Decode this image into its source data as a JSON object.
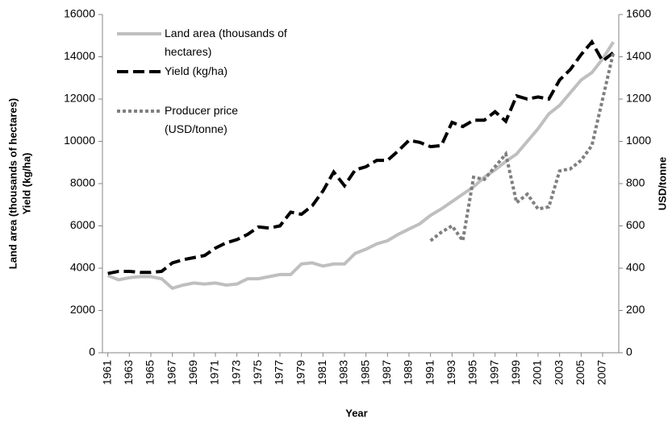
{
  "chart_data": {
    "type": "line",
    "xlabel": "Year",
    "ylabel": [
      "Land area  (thousands of hectares)",
      "Yield (kg/ha)"
    ],
    "y2label": "USD/tonne",
    "x": [
      1961,
      1962,
      1963,
      1964,
      1965,
      1966,
      1967,
      1968,
      1969,
      1970,
      1971,
      1972,
      1973,
      1974,
      1975,
      1976,
      1977,
      1978,
      1979,
      1980,
      1981,
      1982,
      1983,
      1984,
      1985,
      1986,
      1987,
      1988,
      1989,
      1990,
      1991,
      1992,
      1993,
      1994,
      1995,
      1996,
      1997,
      1998,
      1999,
      2000,
      2001,
      2002,
      2003,
      2004,
      2005,
      2006,
      2007,
      2008
    ],
    "xlim": [
      1960.5,
      2008.5
    ],
    "xticks": [
      1961,
      1963,
      1965,
      1967,
      1969,
      1971,
      1973,
      1975,
      1977,
      1979,
      1981,
      1983,
      1985,
      1987,
      1989,
      1991,
      1993,
      1995,
      1997,
      1999,
      2001,
      2003,
      2005,
      2007
    ],
    "ylim": [
      0,
      16000
    ],
    "yticks": [
      0,
      2000,
      4000,
      6000,
      8000,
      10000,
      12000,
      14000,
      16000
    ],
    "y2lim": [
      0,
      1600
    ],
    "y2ticks": [
      0,
      200,
      400,
      600,
      800,
      1000,
      1200,
      1400,
      1600
    ],
    "series": [
      {
        "name": "Land area (thousands of hectares)",
        "color": "#bfbfbf",
        "dash": "solid",
        "values": [
          3650,
          3450,
          3550,
          3600,
          3600,
          3500,
          3050,
          3200,
          3300,
          3250,
          3300,
          3200,
          3250,
          3500,
          3500,
          3600,
          3700,
          3700,
          4200,
          4250,
          4100,
          4200,
          4200,
          4700,
          4900,
          5150,
          5300,
          5600,
          5850,
          6100,
          6500,
          6800,
          7150,
          7500,
          7850,
          8300,
          8650,
          9050,
          9400,
          10000,
          10600,
          11300,
          11700,
          12300,
          12900,
          13250,
          13900,
          14700
        ]
      },
      {
        "name": "Yield (kg/ha)",
        "color": "#000000",
        "dash": "dashed",
        "values": [
          3750,
          3850,
          3850,
          3800,
          3800,
          3850,
          4250,
          4400,
          4500,
          4600,
          4950,
          5200,
          5350,
          5600,
          5950,
          5900,
          6000,
          6650,
          6550,
          6950,
          7650,
          8550,
          7900,
          8650,
          8800,
          9100,
          9100,
          9550,
          10050,
          9950,
          9750,
          9800,
          10900,
          10700,
          11000,
          11000,
          11400,
          10950,
          12150,
          12000,
          12100,
          12000,
          12900,
          13400,
          14100,
          14700,
          13800,
          14200
        ]
      },
      {
        "name": "Producer price (USD/tonne)",
        "color": "#7f7f7f",
        "dash": "dotted",
        "axis": "y2",
        "values": [
          null,
          null,
          null,
          null,
          null,
          null,
          null,
          null,
          null,
          null,
          null,
          null,
          null,
          null,
          null,
          null,
          null,
          null,
          null,
          null,
          null,
          null,
          null,
          null,
          null,
          null,
          null,
          null,
          null,
          null,
          530,
          570,
          600,
          530,
          830,
          820,
          880,
          940,
          710,
          750,
          680,
          690,
          860,
          870,
          910,
          980,
          1200,
          1420
        ]
      }
    ]
  }
}
